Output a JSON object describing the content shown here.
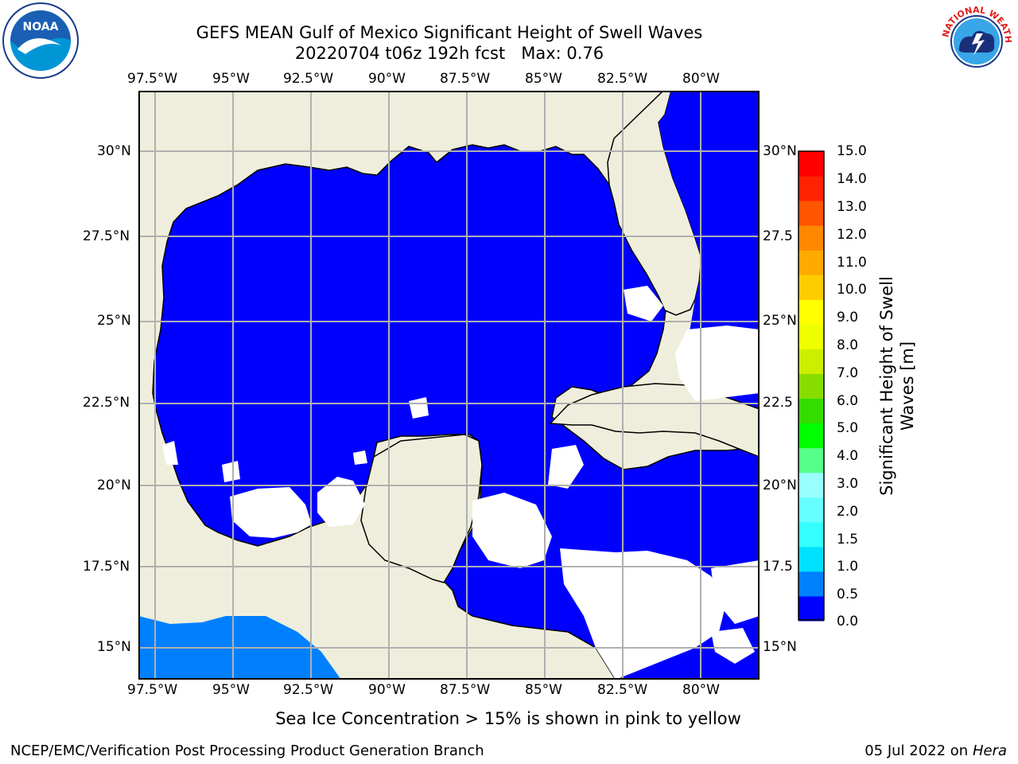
{
  "title": {
    "line1": "GEFS MEAN Gulf of Mexico Significant Height of Swell Waves",
    "line2": "20220704 t06z 192h fcst   Max: 0.76"
  },
  "map": {
    "lon_ticks": [
      "97.5°W",
      "95°W",
      "92.5°W",
      "90°W",
      "87.5°W",
      "85°W",
      "82.5°W",
      "80°W"
    ],
    "lat_ticks": [
      "30°N",
      "27.5°N",
      "25°N",
      "22.5°N",
      "20°N",
      "17.5°N",
      "15°N"
    ],
    "lat_ticks_right": [
      "30°N",
      "27.5",
      "25°N",
      "22.5",
      "20°N",
      "17.5",
      "15°N"
    ],
    "colors": {
      "land": "#efeedc",
      "water_low": "#0000ff",
      "water_mid": "#0080ff",
      "grid": "#b0b0b0"
    }
  },
  "colorbar": {
    "label": "Significant Height of Swell Waves [m]",
    "label_line1": "Significant Height of Swell",
    "label_line2": "Waves [m]",
    "ticks": [
      "15.0",
      "14.0",
      "13.0",
      "12.0",
      "11.0",
      "10.0",
      "9.0",
      "8.0",
      "7.0",
      "6.0",
      "5.0",
      "4.0",
      "3.0",
      "2.0",
      "1.5",
      "1.0",
      "0.5",
      "0.0"
    ],
    "colors": [
      "#0000ff",
      "#0080ff",
      "#00e0ff",
      "#33ffff",
      "#66ffff",
      "#99ffff",
      "#55ff88",
      "#00ff00",
      "#33dd00",
      "#88dd00",
      "#ccee00",
      "#eeff00",
      "#ffff00",
      "#ffcc00",
      "#ffaa00",
      "#ff8800",
      "#ff5500",
      "#ff2200",
      "#ff0000"
    ]
  },
  "note": "Sea Ice Concentration > 15% is shown in pink to yellow",
  "footer": {
    "left": "NCEP/EMC/Verification Post Processing Product Generation Branch",
    "date": "05 Jul 2022 on ",
    "machine": "Hera"
  },
  "logos": {
    "noaa_text": "NOAA",
    "nws_text": "NATIONAL WEATHER SERVICE"
  }
}
